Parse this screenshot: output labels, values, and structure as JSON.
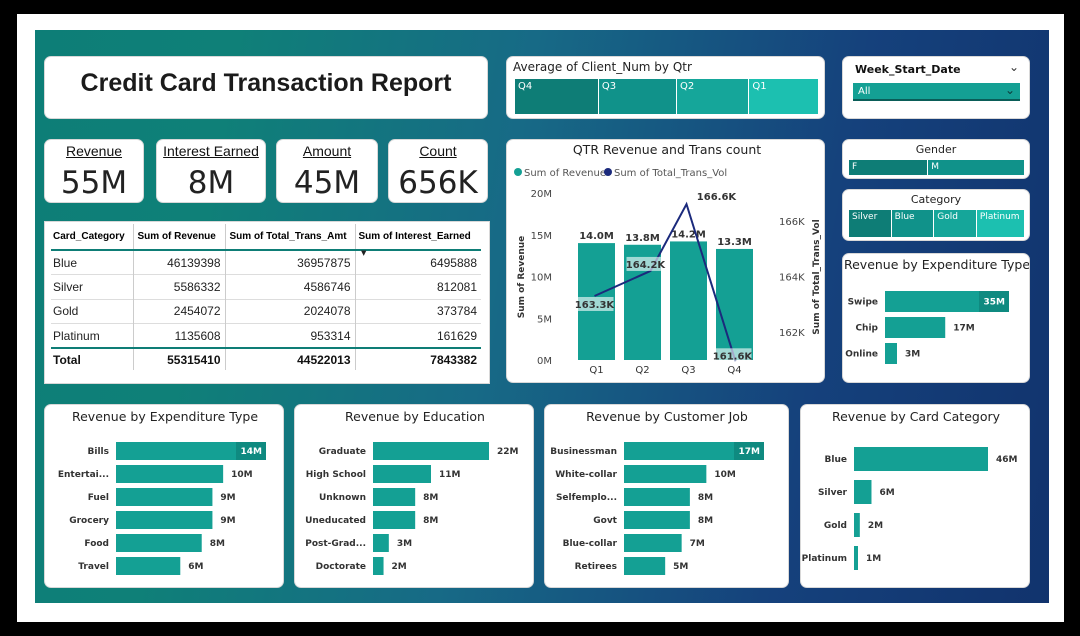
{
  "report_title": "Credit Card Transaction Report",
  "kpis": [
    {
      "label": "Revenue",
      "value": "55M"
    },
    {
      "label": "Interest Earned",
      "value": "8M"
    },
    {
      "label": "Amount",
      "value": "45M"
    },
    {
      "label": "Count",
      "value": "656K"
    }
  ],
  "qtr_slicer": {
    "title": "Average of Client_Num by Qtr",
    "items": [
      "Q4",
      "Q3",
      "Q2",
      "Q1"
    ],
    "values": [
      29,
      27,
      25,
      24
    ]
  },
  "week_slicer": {
    "title": "Week_Start_Date",
    "selected": "All"
  },
  "gender_slicer": {
    "title": "Gender",
    "items": [
      "F",
      "M"
    ],
    "values": [
      45,
      55
    ]
  },
  "category_slicer": {
    "title": "Category",
    "items": [
      "Silver",
      "Blue",
      "Gold",
      "Platinum"
    ],
    "values": [
      23,
      23,
      23,
      26
    ]
  },
  "table": {
    "headers": [
      "Card_Category",
      "Sum of Revenue",
      "Sum of Total_Trans_Amt",
      "Sum of Interest_Earned"
    ],
    "rows": [
      [
        "Blue",
        "46139398",
        "36957875",
        "6495888"
      ],
      [
        "Silver",
        "5586332",
        "4586746",
        "812081"
      ],
      [
        "Gold",
        "2454072",
        "2024078",
        "373784"
      ],
      [
        "Platinum",
        "1135608",
        "953314",
        "161629"
      ]
    ],
    "total": [
      "Total",
      "55315410",
      "44522013",
      "7843382"
    ]
  },
  "colors": {
    "teal": "#14a094",
    "navy": "#1b2a7c",
    "dark_teal": "#0e7d76"
  },
  "chart_data": [
    {
      "id": "combo",
      "type": "bar",
      "title": "QTR Revenue and Trans count",
      "legend": [
        "Sum of Revenue",
        "Sum of Total_Trans_Vol"
      ],
      "categories": [
        "Q1",
        "Q2",
        "Q3",
        "Q4"
      ],
      "series": [
        {
          "name": "Sum of Revenue",
          "values": [
            14.0,
            13.8,
            14.2,
            13.3
          ],
          "labels": [
            "14.0M",
            "13.8M",
            "14.2M",
            "13.3M"
          ]
        },
        {
          "name": "Sum of Total_Trans_Vol",
          "values": [
            163.3,
            164.2,
            166.6,
            161.6
          ],
          "labels": [
            "163.3K",
            "164.2K",
            "166.6K",
            "161.6K"
          ]
        }
      ],
      "y_ticks": [
        "20M",
        "15M",
        "10M",
        "5M",
        "0M"
      ],
      "y2_ticks": [
        "166K",
        "164K",
        "162K"
      ],
      "ylabel": "Sum of Revenue",
      "y2label": "Sum of Total_Trans_Vol",
      "ylim": [
        0,
        20
      ],
      "y2lim": [
        161,
        167
      ]
    },
    {
      "id": "exp_small",
      "type": "bar",
      "title": "Revenue by Expenditure Type",
      "categories": [
        "Swipe",
        "Chip",
        "Online"
      ],
      "values": [
        35,
        17,
        3
      ],
      "labels": [
        "35M",
        "17M",
        "3M"
      ],
      "max": 35
    },
    {
      "id": "exp",
      "type": "bar",
      "title": "Revenue by Expenditure Type",
      "categories": [
        "Bills",
        "Entertai...",
        "Fuel",
        "Grocery",
        "Food",
        "Travel"
      ],
      "values": [
        14,
        10,
        9,
        9,
        8,
        6
      ],
      "labels": [
        "14M",
        "10M",
        "9M",
        "9M",
        "8M",
        "6M"
      ],
      "max": 14
    },
    {
      "id": "edu",
      "type": "bar",
      "title": "Revenue by Education",
      "categories": [
        "Graduate",
        "High School",
        "Unknown",
        "Uneducated",
        "Post-Grad...",
        "Doctorate"
      ],
      "values": [
        22,
        11,
        8,
        8,
        3,
        2
      ],
      "labels": [
        "22M",
        "11M",
        "8M",
        "8M",
        "3M",
        "2M"
      ],
      "max": 22
    },
    {
      "id": "job",
      "type": "bar",
      "title": "Revenue by Customer Job",
      "categories": [
        "Businessman",
        "White-collar",
        "Selfemplo...",
        "Govt",
        "Blue-collar",
        "Retirees"
      ],
      "values": [
        17,
        10,
        8,
        8,
        7,
        5
      ],
      "labels": [
        "17M",
        "10M",
        "8M",
        "8M",
        "7M",
        "5M"
      ],
      "max": 17
    },
    {
      "id": "card",
      "type": "bar",
      "title": "Revenue by Card Category",
      "categories": [
        "Blue",
        "Silver",
        "Gold",
        "Platinum"
      ],
      "values": [
        46,
        6,
        2,
        1
      ],
      "labels": [
        "46M",
        "6M",
        "2M",
        "1M"
      ],
      "max": 46
    }
  ]
}
